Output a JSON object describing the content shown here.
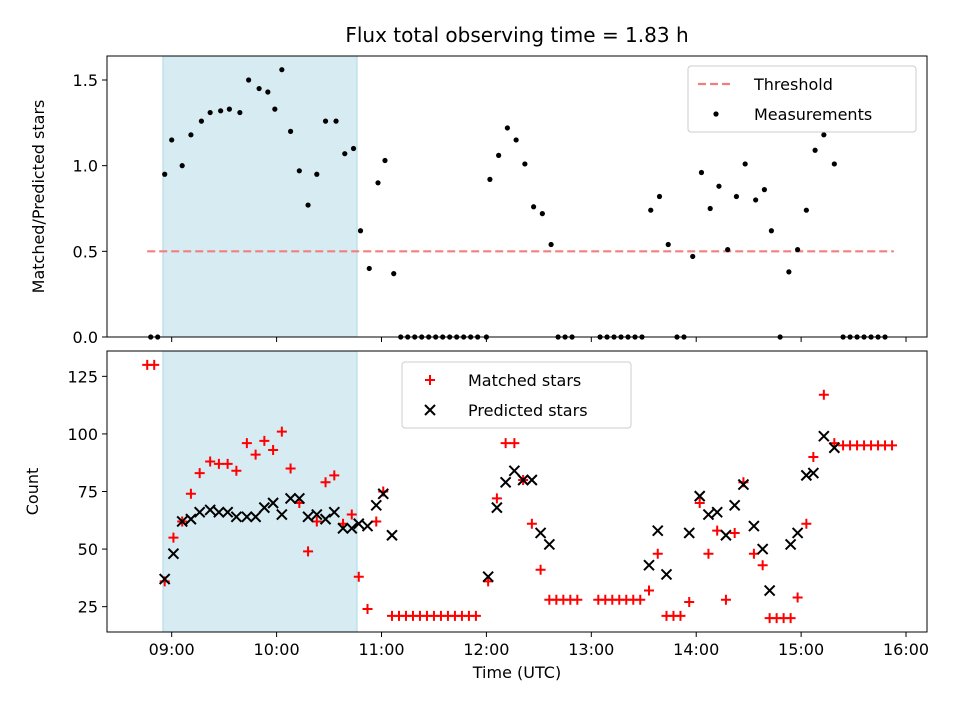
{
  "chart_data": [
    {
      "type": "scatter",
      "title": "Flux total observing time = 1.83 h",
      "xlabel": "",
      "ylabel": "Matched/Predicted stars",
      "xlim": [
        "08:23",
        "16:12"
      ],
      "ylim": [
        0,
        1.64
      ],
      "x_ticks": [],
      "y_ticks": [
        0.0,
        0.5,
        1.0,
        1.5
      ],
      "y_tick_labels": [
        "0.0",
        "0.5",
        "1.0",
        "1.5"
      ],
      "shaded_interval": [
        "08:55",
        "10:46"
      ],
      "legend_position": "top-right",
      "threshold": {
        "name": "Threshold",
        "value": 0.5,
        "x_range": [
          "08:46",
          "15:53"
        ],
        "color": "#f08080",
        "style": "dashed"
      },
      "series": [
        {
          "name": "Measurements",
          "marker": "dot",
          "color": "#000000",
          "points": [
            [
              "08:48",
              0.0
            ],
            [
              "08:52",
              0.0
            ],
            [
              "08:56",
              0.95
            ],
            [
              "09:00",
              1.15
            ],
            [
              "09:06",
              1.0
            ],
            [
              "09:11",
              1.18
            ],
            [
              "09:17",
              1.26
            ],
            [
              "09:22",
              1.31
            ],
            [
              "09:28",
              1.32
            ],
            [
              "09:33",
              1.33
            ],
            [
              "09:39",
              1.31
            ],
            [
              "09:44",
              1.5
            ],
            [
              "09:50",
              1.45
            ],
            [
              "09:55",
              1.43
            ],
            [
              "09:59",
              1.33
            ],
            [
              "10:03",
              1.56
            ],
            [
              "10:08",
              1.2
            ],
            [
              "10:13",
              0.97
            ],
            [
              "10:18",
              0.77
            ],
            [
              "10:23",
              0.95
            ],
            [
              "10:28",
              1.26
            ],
            [
              "10:34",
              1.26
            ],
            [
              "10:39",
              1.07
            ],
            [
              "10:44",
              1.1
            ],
            [
              "10:48",
              0.62
            ],
            [
              "10:53",
              0.4
            ],
            [
              "10:58",
              0.9
            ],
            [
              "11:02",
              1.03
            ],
            [
              "11:07",
              0.37
            ],
            [
              "11:11",
              0.0
            ],
            [
              "11:15",
              0.0
            ],
            [
              "11:19",
              0.0
            ],
            [
              "11:23",
              0.0
            ],
            [
              "11:27",
              0.0
            ],
            [
              "11:31",
              0.0
            ],
            [
              "11:35",
              0.0
            ],
            [
              "11:39",
              0.0
            ],
            [
              "11:43",
              0.0
            ],
            [
              "11:47",
              0.0
            ],
            [
              "11:51",
              0.0
            ],
            [
              "11:55",
              0.0
            ],
            [
              "12:00",
              0.0
            ],
            [
              "12:02",
              0.92
            ],
            [
              "12:07",
              1.06
            ],
            [
              "12:12",
              1.22
            ],
            [
              "12:17",
              1.15
            ],
            [
              "12:22",
              1.01
            ],
            [
              "12:27",
              0.76
            ],
            [
              "12:32",
              0.72
            ],
            [
              "12:37",
              0.54
            ],
            [
              "12:41",
              0.0
            ],
            [
              "12:45",
              0.0
            ],
            [
              "12:49",
              0.0
            ],
            [
              "13:05",
              0.0
            ],
            [
              "13:09",
              0.0
            ],
            [
              "13:13",
              0.0
            ],
            [
              "13:17",
              0.0
            ],
            [
              "13:21",
              0.0
            ],
            [
              "13:25",
              0.0
            ],
            [
              "13:29",
              0.0
            ],
            [
              "13:34",
              0.74
            ],
            [
              "13:39",
              0.82
            ],
            [
              "13:44",
              0.54
            ],
            [
              "13:49",
              0.0
            ],
            [
              "13:53",
              0.0
            ],
            [
              "13:58",
              0.47
            ],
            [
              "14:03",
              0.96
            ],
            [
              "14:08",
              0.75
            ],
            [
              "14:13",
              0.88
            ],
            [
              "14:18",
              0.51
            ],
            [
              "14:23",
              0.82
            ],
            [
              "14:28",
              1.01
            ],
            [
              "14:34",
              0.8
            ],
            [
              "14:39",
              0.86
            ],
            [
              "14:43",
              0.62
            ],
            [
              "14:48",
              0.0
            ],
            [
              "14:53",
              0.38
            ],
            [
              "14:58",
              0.51
            ],
            [
              "15:03",
              0.74
            ],
            [
              "15:08",
              1.09
            ],
            [
              "15:13",
              1.18
            ],
            [
              "15:19",
              1.01
            ],
            [
              "15:24",
              0.0
            ],
            [
              "15:28",
              0.0
            ],
            [
              "15:32",
              0.0
            ],
            [
              "15:36",
              0.0
            ],
            [
              "15:40",
              0.0
            ],
            [
              "15:44",
              0.0
            ],
            [
              "15:48",
              0.0
            ]
          ]
        }
      ]
    },
    {
      "type": "scatter",
      "title": "",
      "xlabel": "Time (UTC)",
      "ylabel": "Count",
      "xlim": [
        "08:23",
        "16:12"
      ],
      "ylim": [
        14,
        136
      ],
      "x_ticks": [
        "09:00",
        "10:00",
        "11:00",
        "12:00",
        "13:00",
        "14:00",
        "15:00",
        "16:00"
      ],
      "y_ticks": [
        25,
        50,
        75,
        100,
        125
      ],
      "shaded_interval": [
        "08:55",
        "10:46"
      ],
      "legend_position": "top-center",
      "series": [
        {
          "name": "Matched stars",
          "marker": "plus",
          "color": "#ff0000",
          "points": [
            [
              "08:46",
              130
            ],
            [
              "08:50",
              130
            ],
            [
              "08:56",
              36
            ],
            [
              "09:01",
              55
            ],
            [
              "09:06",
              62
            ],
            [
              "09:11",
              74
            ],
            [
              "09:16",
              83
            ],
            [
              "09:22",
              88
            ],
            [
              "09:27",
              87
            ],
            [
              "09:32",
              87
            ],
            [
              "09:37",
              84
            ],
            [
              "09:43",
              96
            ],
            [
              "09:48",
              91
            ],
            [
              "09:53",
              97
            ],
            [
              "09:58",
              93
            ],
            [
              "10:03",
              101
            ],
            [
              "10:08",
              85
            ],
            [
              "10:13",
              70
            ],
            [
              "10:18",
              49
            ],
            [
              "10:23",
              62
            ],
            [
              "10:28",
              79
            ],
            [
              "10:33",
              82
            ],
            [
              "10:38",
              61
            ],
            [
              "10:43",
              65
            ],
            [
              "10:47",
              38
            ],
            [
              "10:52",
              24
            ],
            [
              "10:57",
              62
            ],
            [
              "11:01",
              75
            ],
            [
              "11:06",
              21
            ],
            [
              "11:10",
              21
            ],
            [
              "11:14",
              21
            ],
            [
              "11:18",
              21
            ],
            [
              "11:22",
              21
            ],
            [
              "11:26",
              21
            ],
            [
              "11:30",
              21
            ],
            [
              "11:34",
              21
            ],
            [
              "11:38",
              21
            ],
            [
              "11:42",
              21
            ],
            [
              "11:46",
              21
            ],
            [
              "11:50",
              21
            ],
            [
              "11:54",
              21
            ],
            [
              "12:01",
              36
            ],
            [
              "12:06",
              72
            ],
            [
              "12:11",
              96
            ],
            [
              "12:16",
              96
            ],
            [
              "12:21",
              80
            ],
            [
              "12:26",
              61
            ],
            [
              "12:31",
              41
            ],
            [
              "12:36",
              28
            ],
            [
              "12:40",
              28
            ],
            [
              "12:44",
              28
            ],
            [
              "12:48",
              28
            ],
            [
              "12:52",
              28
            ],
            [
              "13:04",
              28
            ],
            [
              "13:08",
              28
            ],
            [
              "13:12",
              28
            ],
            [
              "13:16",
              28
            ],
            [
              "13:20",
              28
            ],
            [
              "13:24",
              28
            ],
            [
              "13:28",
              28
            ],
            [
              "13:33",
              32
            ],
            [
              "13:38",
              48
            ],
            [
              "13:43",
              21
            ],
            [
              "13:47",
              21
            ],
            [
              "13:51",
              21
            ],
            [
              "13:56",
              27
            ],
            [
              "14:02",
              70
            ],
            [
              "14:07",
              48
            ],
            [
              "14:12",
              58
            ],
            [
              "14:17",
              28
            ],
            [
              "14:22",
              57
            ],
            [
              "14:27",
              79
            ],
            [
              "14:33",
              48
            ],
            [
              "14:38",
              43
            ],
            [
              "14:42",
              20
            ],
            [
              "14:46",
              20
            ],
            [
              "14:50",
              20
            ],
            [
              "14:54",
              20
            ],
            [
              "14:58",
              29
            ],
            [
              "15:03",
              61
            ],
            [
              "15:07",
              90
            ],
            [
              "15:13",
              117
            ],
            [
              "15:19",
              96
            ],
            [
              "15:24",
              95
            ],
            [
              "15:28",
              95
            ],
            [
              "15:32",
              95
            ],
            [
              "15:36",
              95
            ],
            [
              "15:40",
              95
            ],
            [
              "15:44",
              95
            ],
            [
              "15:48",
              95
            ],
            [
              "15:52",
              95
            ]
          ]
        },
        {
          "name": "Predicted stars",
          "marker": "x",
          "color": "#000000",
          "points": [
            [
              "08:56",
              37
            ],
            [
              "09:01",
              48
            ],
            [
              "09:06",
              62
            ],
            [
              "09:11",
              63
            ],
            [
              "09:16",
              66
            ],
            [
              "09:22",
              67
            ],
            [
              "09:27",
              66
            ],
            [
              "09:32",
              66
            ],
            [
              "09:37",
              64
            ],
            [
              "09:43",
              64
            ],
            [
              "09:48",
              64
            ],
            [
              "09:53",
              68
            ],
            [
              "09:58",
              70
            ],
            [
              "10:03",
              65
            ],
            [
              "10:08",
              72
            ],
            [
              "10:13",
              72
            ],
            [
              "10:18",
              64
            ],
            [
              "10:23",
              65
            ],
            [
              "10:28",
              63
            ],
            [
              "10:33",
              66
            ],
            [
              "10:38",
              59
            ],
            [
              "10:43",
              59
            ],
            [
              "10:47",
              61
            ],
            [
              "10:52",
              60
            ],
            [
              "10:57",
              69
            ],
            [
              "11:01",
              74
            ],
            [
              "11:06",
              56
            ],
            [
              "12:01",
              38
            ],
            [
              "12:06",
              68
            ],
            [
              "12:11",
              79
            ],
            [
              "12:16",
              84
            ],
            [
              "12:21",
              80
            ],
            [
              "12:26",
              80
            ],
            [
              "12:31",
              57
            ],
            [
              "12:36",
              52
            ],
            [
              "13:33",
              43
            ],
            [
              "13:38",
              58
            ],
            [
              "13:43",
              39
            ],
            [
              "13:56",
              57
            ],
            [
              "14:02",
              73
            ],
            [
              "14:07",
              65
            ],
            [
              "14:12",
              66
            ],
            [
              "14:17",
              56
            ],
            [
              "14:22",
              69
            ],
            [
              "14:27",
              78
            ],
            [
              "14:33",
              60
            ],
            [
              "14:38",
              50
            ],
            [
              "14:42",
              32
            ],
            [
              "14:54",
              52
            ],
            [
              "14:58",
              57
            ],
            [
              "15:03",
              82
            ],
            [
              "15:07",
              83
            ],
            [
              "15:13",
              99
            ],
            [
              "15:19",
              94
            ]
          ]
        }
      ]
    }
  ]
}
